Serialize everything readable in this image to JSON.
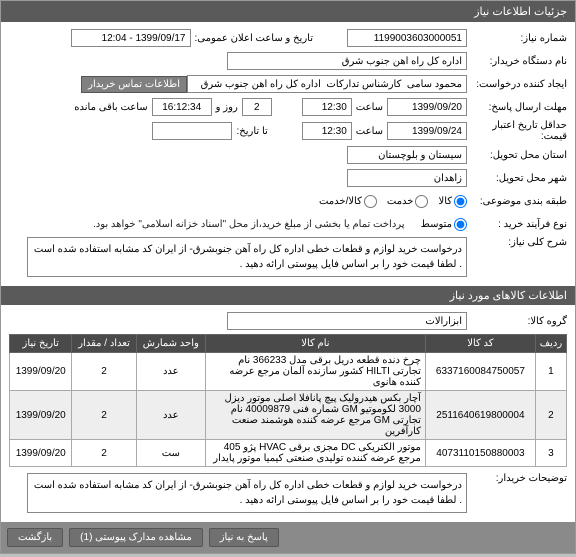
{
  "title_bar": "جزئیات اطلاعات نیاز",
  "form": {
    "req_no_label": "شماره نیاز:",
    "req_no": "1199003603000051",
    "public_time_label": "تاریخ و ساعت اعلان عمومی:",
    "public_time": "1399/09/17 - 12:04",
    "buyer_org_label": "نام دستگاه خریدار:",
    "buyer_org": "اداره کل راه آهن جنوب شرق",
    "creator_label": "ایجاد کننده درخواست:",
    "creator": "محمود سامی  کارشناس تدارکات  اداره کل راه آهن جنوب شرق",
    "contact_btn": "اطلاعات تماس خریدار",
    "deadline_label": "مهلت ارسال پاسخ:",
    "deadline_date": "1399/09/20",
    "time_label": "ساعت",
    "deadline_time": "12:30",
    "days_left": "2",
    "days_label": "روز و",
    "countdown": "16:12:34",
    "remain_label": "ساعت باقی مانده",
    "valid_label": "حداقل تاریخ اعتبار قیمت:",
    "valid_date": "1399/09/24",
    "valid_time": "12:30",
    "to_date_label": "تا تاریخ:",
    "province_label": "استان محل تحویل:",
    "province": "سیستان و بلوچستان",
    "city_label": "شهر محل تحویل:",
    "city": "زاهدان",
    "budget_type_label": "طبقه بندی موضوعی:",
    "radio_goods": "کالا",
    "radio_service": "خدمت",
    "radio_goods_service": "کالا/خدمت",
    "process_label": "نوع فرآیند خرید :",
    "radio_mid": "متوسط",
    "process_note": "پرداخت تمام یا بخشی از مبلغ خرید،از محل \"اسناد خزانه اسلامی\" خواهد بود.",
    "main_desc_label": "شرح کلی نیاز:",
    "main_desc": "درخواست خرید لوازم و قطعات خطی اداره کل راه آهن جنوبشرق- از ایران کد مشابه استفاده شده است . لطفا قیمت خود را بر اساس فایل پیوستی ارائه دهید .",
    "buyer_notes_label": "توضیحات خریدار:",
    "buyer_notes": "درخواست خرید لوازم و قطعات خطی اداره کل راه آهن جنوبشرق- از ایران کد مشابه استفاده شده است . لطفا قیمت خود را بر اساس فایل پیوستی ارائه دهید ."
  },
  "goods_section": "اطلاعات کالاهای مورد نیاز",
  "goods_group_label": "گروه کالا:",
  "goods_group": "ابزارآلات",
  "table": {
    "headers": {
      "row": "ردیف",
      "code": "کد کالا",
      "name": "نام کالا",
      "unit": "واحد شمارش",
      "qty": "تعداد / مقدار",
      "date": "تاریخ نیاز"
    },
    "rows": [
      {
        "n": "1",
        "code": "6337160084750057",
        "name": "چرخ دنده قطعه دریل برقی مدل 366233 نام تجارتی HILTI کشور سازنده آلمان مرجع عرضه کننده هانوی",
        "unit": "عدد",
        "qty": "2",
        "date": "1399/09/20"
      },
      {
        "n": "2",
        "code": "2511640619800004",
        "name": "آچار بکس هیدرولیک پیچ پانافلا اصلی موتور دیزل 3000 لکوموتیو GM شماره فنی 40009879 نام تجارتی GM مرجع عرضه کننده هوشمند صنعت کارآفرین",
        "unit": "عدد",
        "qty": "2",
        "date": "1399/09/20"
      },
      {
        "n": "3",
        "code": "4073110150880003",
        "name": "موتور الکتریکی DC مجزی برقی HVAC پژو 405 مرجع عرضه کننده تولیدی صنعتی کیمیا موتور پایدار",
        "unit": "ست",
        "qty": "2",
        "date": "1399/09/20"
      }
    ]
  },
  "buttons": {
    "reply": "پاسخ به نیاز",
    "attachments": "مشاهده مدارک پیوستی (1)",
    "back": "بازگشت"
  }
}
